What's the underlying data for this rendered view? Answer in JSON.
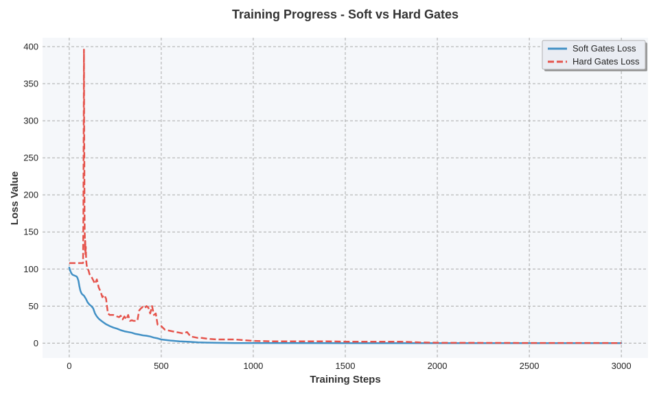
{
  "chart_data": {
    "type": "line",
    "title": "Training Progress - Soft vs Hard Gates",
    "xlabel": "Training Steps",
    "ylabel": "Loss Value",
    "xlim": [
      -145,
      3145
    ],
    "ylim": [
      -20,
      412
    ],
    "xticks": [
      0,
      500,
      1000,
      1500,
      2000,
      2500,
      3000
    ],
    "yticks": [
      0,
      50,
      100,
      150,
      200,
      250,
      300,
      350,
      400
    ],
    "grid": true,
    "legend_position": "top-right",
    "series": [
      {
        "name": "Soft Gates Loss",
        "color": "#4190c5",
        "style": "solid",
        "x": [
          0,
          5,
          10,
          15,
          20,
          30,
          40,
          45,
          50,
          55,
          60,
          65,
          70,
          80,
          90,
          100,
          110,
          120,
          130,
          140,
          150,
          160,
          170,
          180,
          200,
          220,
          240,
          260,
          280,
          300,
          320,
          340,
          360,
          380,
          400,
          420,
          440,
          460,
          480,
          500,
          550,
          600,
          650,
          700,
          750,
          800,
          900,
          1000,
          1200,
          1500,
          2000,
          2500,
          3000
        ],
        "values": [
          102,
          98,
          95,
          93,
          92,
          91,
          90,
          88,
          84,
          77,
          71,
          68,
          66,
          64,
          60,
          55,
          52,
          50,
          47,
          40,
          36,
          33,
          31,
          29,
          25.5,
          23,
          21,
          19.5,
          17.5,
          16,
          15,
          14,
          12.5,
          11.5,
          10.5,
          10,
          9,
          7.5,
          6.5,
          5,
          3.5,
          2.5,
          1.8,
          1.1,
          0.7,
          0.4,
          0.2,
          0.1,
          0.05,
          0.02,
          0.01,
          0.01,
          0
        ]
      },
      {
        "name": "Hard Gates Loss",
        "color": "#e5534b",
        "style": "dashed",
        "x": [
          0,
          75,
          76,
          77,
          78,
          79,
          80,
          81,
          82,
          83,
          84,
          85,
          86,
          87,
          88,
          90,
          92,
          95,
          100,
          105,
          110,
          120,
          130,
          140,
          150,
          160,
          170,
          180,
          190,
          200,
          210,
          220,
          240,
          260,
          270,
          280,
          290,
          300,
          310,
          320,
          330,
          340,
          350,
          370,
          380,
          390,
          400,
          410,
          420,
          430,
          440,
          450,
          460,
          470,
          480,
          500,
          520,
          540,
          560,
          580,
          600,
          620,
          640,
          660,
          680,
          700,
          720,
          750,
          800,
          850,
          900,
          1000,
          1100,
          1200,
          1400,
          1500,
          1600,
          1700,
          1800,
          1900,
          2000,
          2500,
          3000
        ],
        "values": [
          108,
          108,
          135,
          170,
          260,
          330,
          396,
          300,
          240,
          180,
          150,
          140,
          125,
          138,
          120,
          130,
          112,
          105,
          100,
          98,
          93,
          90,
          85,
          80,
          86,
          75,
          70,
          62,
          65,
          60,
          40,
          38,
          38,
          36,
          35,
          37,
          32,
          36,
          32,
          38,
          30,
          31,
          30,
          30,
          44,
          47,
          49,
          47,
          50,
          48,
          40,
          50,
          38,
          40,
          25,
          23,
          18,
          17,
          16,
          15,
          14,
          13,
          15,
          9,
          8,
          7,
          7,
          6,
          5,
          5,
          5,
          3,
          2.5,
          2.5,
          2.5,
          2,
          2,
          2,
          2,
          1,
          0.5,
          0.3,
          0.2
        ]
      }
    ]
  }
}
